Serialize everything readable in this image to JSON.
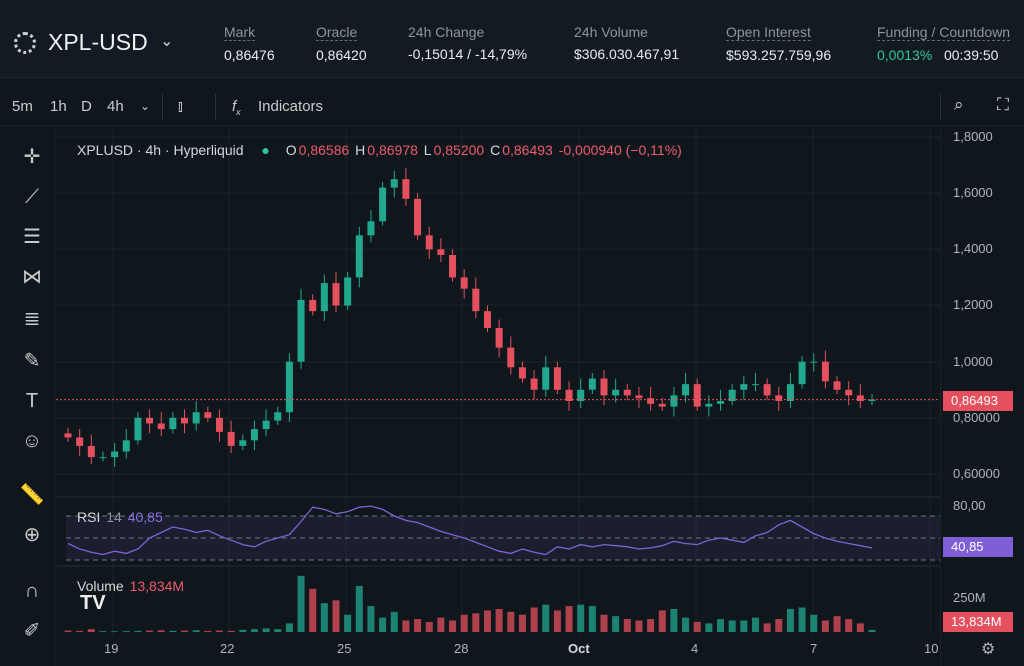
{
  "header": {
    "pair": "XPL-USD",
    "stats": [
      {
        "label": "Mark",
        "value": "0,86476"
      },
      {
        "label": "Oracle",
        "value": "0,86420"
      },
      {
        "label": "24h Change",
        "value": "-0,15014 / -14,79%"
      },
      {
        "label": "24h Volume",
        "value": "$306.030.467,91"
      },
      {
        "label": "Open Interest",
        "value": "$593.257.759,96"
      },
      {
        "label": "Funding / Countdown",
        "value": "0,0013%",
        "value2": "00:39:50"
      }
    ]
  },
  "toolbar": {
    "intervals": [
      "5m",
      "1h",
      "D",
      "4h"
    ],
    "indicators": "Indicators"
  },
  "legend": {
    "symbol": "XPLUSD · 4h · Hyperliquid",
    "o_label": "O",
    "o": "0,86586",
    "h_label": "H",
    "h": "0,86978",
    "l_label": "L",
    "l": "0,85200",
    "c_label": "C",
    "c": "0,86493",
    "change": "-0,000940 (−0,11%)"
  },
  "rsi": {
    "label": "RSI",
    "period": "14",
    "value": "40,85",
    "axis": "80,00"
  },
  "volume": {
    "label": "Volume",
    "value": "13,834M",
    "axis": "250M"
  },
  "price_axis": [
    "1,8000",
    "1,6000",
    "1,4000",
    "1,2000",
    "1,0000",
    "0,80000",
    "0,60000"
  ],
  "current_price": "0,86493",
  "x_labels": [
    "19",
    "22",
    "25",
    "28",
    "Oct",
    "4",
    "7",
    "10"
  ],
  "colors": {
    "up": "#22a88f",
    "down": "#e5505e",
    "rsi": "#7e63d6"
  },
  "chart_data": {
    "type": "candlestick",
    "price_range": [
      0.6,
      1.8
    ],
    "closes": [
      0.73,
      0.7,
      0.66,
      0.66,
      0.68,
      0.72,
      0.8,
      0.78,
      0.76,
      0.8,
      0.78,
      0.82,
      0.8,
      0.75,
      0.7,
      0.72,
      0.76,
      0.79,
      0.82,
      1.0,
      1.22,
      1.18,
      1.28,
      1.2,
      1.3,
      1.45,
      1.5,
      1.62,
      1.65,
      1.58,
      1.45,
      1.4,
      1.38,
      1.3,
      1.26,
      1.18,
      1.12,
      1.05,
      0.98,
      0.94,
      0.9,
      0.98,
      0.9,
      0.86,
      0.9,
      0.94,
      0.88,
      0.9,
      0.88,
      0.87,
      0.85,
      0.84,
      0.88,
      0.92,
      0.84,
      0.85,
      0.86,
      0.9,
      0.92,
      0.92,
      0.88,
      0.86,
      0.92,
      1.0,
      1.0,
      0.93,
      0.9,
      0.88,
      0.86,
      0.865
    ],
    "volumes_m": [
      10,
      8,
      20,
      6,
      5,
      6,
      8,
      10,
      12,
      8,
      10,
      12,
      8,
      10,
      8,
      15,
      20,
      25,
      20,
      60,
      390,
      300,
      200,
      220,
      120,
      320,
      180,
      100,
      140,
      80,
      90,
      70,
      100,
      80,
      120,
      130,
      150,
      160,
      140,
      120,
      170,
      190,
      150,
      180,
      190,
      180,
      120,
      110,
      90,
      80,
      90,
      150,
      160,
      100,
      70,
      60,
      90,
      80,
      80,
      100,
      60,
      90,
      160,
      170,
      120,
      80,
      110,
      90,
      60,
      14
    ],
    "rsi": [
      45,
      40,
      37,
      35,
      38,
      36,
      40,
      50,
      55,
      60,
      58,
      55,
      57,
      52,
      48,
      44,
      42,
      47,
      50,
      53,
      65,
      78,
      76,
      72,
      74,
      78,
      79,
      76,
      70,
      66,
      64,
      60,
      56,
      53,
      50,
      46,
      42,
      38,
      36,
      40,
      37,
      35,
      42,
      40,
      44,
      42,
      44,
      43,
      42,
      40,
      41,
      43,
      47,
      45,
      44,
      48,
      50,
      48,
      46,
      52,
      55,
      62,
      66,
      60,
      54,
      50,
      47,
      45,
      43,
      41
    ]
  }
}
